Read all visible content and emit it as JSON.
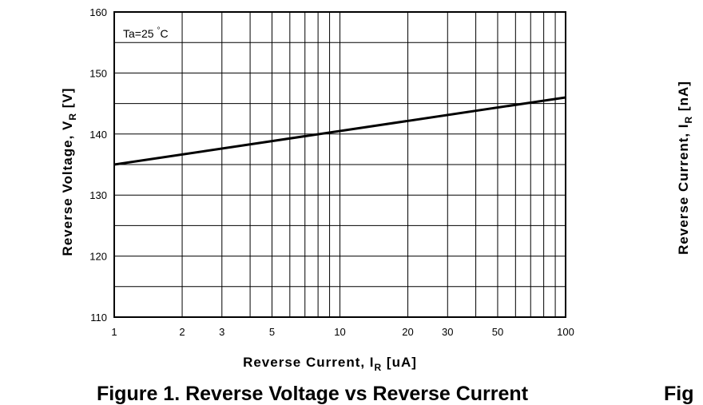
{
  "chart_data": {
    "type": "line",
    "xscale": "log",
    "xlim": [
      1,
      100
    ],
    "ylim": [
      110,
      160
    ],
    "grid": true,
    "xlabel": {
      "main": "Reverse Current, I",
      "sub": "R",
      "unit": " [uA]"
    },
    "ylabel": {
      "main": "Reverse Voltage, V",
      "sub": "R",
      "unit": " [V]"
    },
    "annotation": {
      "main": "Ta=25 ",
      "sup": "°",
      "unit": "C"
    },
    "x_ticks": [
      {
        "value": 1,
        "label": "1"
      },
      {
        "value": 2,
        "label": "2"
      },
      {
        "value": 3,
        "label": "3"
      },
      {
        "value": 5,
        "label": "5"
      },
      {
        "value": 10,
        "label": "10"
      },
      {
        "value": 20,
        "label": "20"
      },
      {
        "value": 30,
        "label": "30"
      },
      {
        "value": 50,
        "label": "50"
      },
      {
        "value": 100,
        "label": "100"
      }
    ],
    "x_grid": [
      1,
      2,
      3,
      4,
      5,
      6,
      7,
      8,
      9,
      10,
      20,
      30,
      40,
      50,
      60,
      70,
      80,
      90,
      100
    ],
    "y_ticks": [
      {
        "value": 110,
        "label": "110"
      },
      {
        "value": 120,
        "label": "120"
      },
      {
        "value": 130,
        "label": "130"
      },
      {
        "value": 140,
        "label": "140"
      },
      {
        "value": 150,
        "label": "150"
      },
      {
        "value": 160,
        "label": "160"
      }
    ],
    "y_grid": [
      110,
      115,
      120,
      125,
      130,
      135,
      140,
      145,
      150,
      155,
      160
    ],
    "series": [
      {
        "x": [
          1,
          100
        ],
        "y": [
          135,
          146
        ]
      }
    ]
  },
  "caption": "Figure 1. Reverse Voltage vs Reverse Current",
  "adjacent_figure": {
    "ylabel": {
      "main": "Reverse Current, I",
      "sub": "R",
      "unit": " [nA]"
    },
    "caption_fragment": "Fig"
  }
}
